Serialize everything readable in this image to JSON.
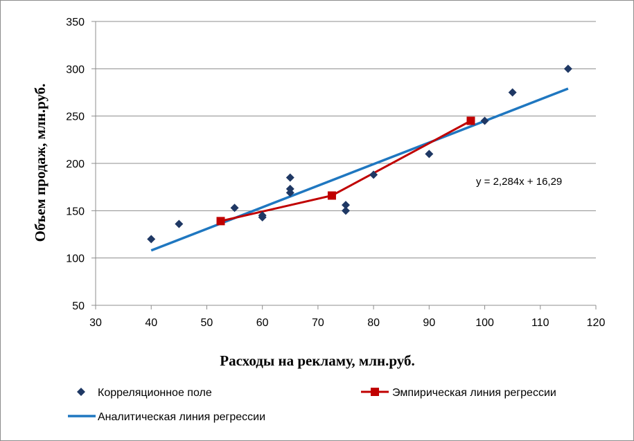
{
  "chart_data": {
    "type": "scatter",
    "xlabel": "Расходы на рекламу, млн.руб.",
    "ylabel": "Объем продаж, млн.руб.",
    "xlim": [
      30,
      120
    ],
    "ylim": [
      50,
      350
    ],
    "xticks": [
      30,
      40,
      50,
      60,
      70,
      80,
      90,
      100,
      110,
      120
    ],
    "yticks": [
      50,
      100,
      150,
      200,
      250,
      300,
      350
    ],
    "grid": "horizontal",
    "legend_position": "bottom",
    "series": [
      {
        "name": "Корреляционное поле",
        "kind": "scatter",
        "color": "#1f3864",
        "marker": "diamond",
        "points": [
          [
            40,
            120
          ],
          [
            45,
            136
          ],
          [
            55,
            153
          ],
          [
            60,
            145
          ],
          [
            60,
            143
          ],
          [
            65,
            185
          ],
          [
            65,
            173
          ],
          [
            65,
            169
          ],
          [
            75,
            156
          ],
          [
            75,
            150
          ],
          [
            80,
            188
          ],
          [
            90,
            210
          ],
          [
            100,
            245
          ],
          [
            105,
            275
          ],
          [
            115,
            300
          ]
        ]
      },
      {
        "name": "Эмпирическая линия регрессии",
        "kind": "line-markers",
        "color": "#c00000",
        "marker": "square",
        "points": [
          [
            52.5,
            139
          ],
          [
            72.5,
            166
          ],
          [
            97.5,
            245
          ]
        ]
      },
      {
        "name": "Аналитическая линия регрессии",
        "kind": "line",
        "color": "#1f77c0",
        "points": [
          [
            40,
            108
          ],
          [
            115,
            279
          ]
        ]
      }
    ],
    "annotation": "y = 2,284x + 16,29"
  }
}
